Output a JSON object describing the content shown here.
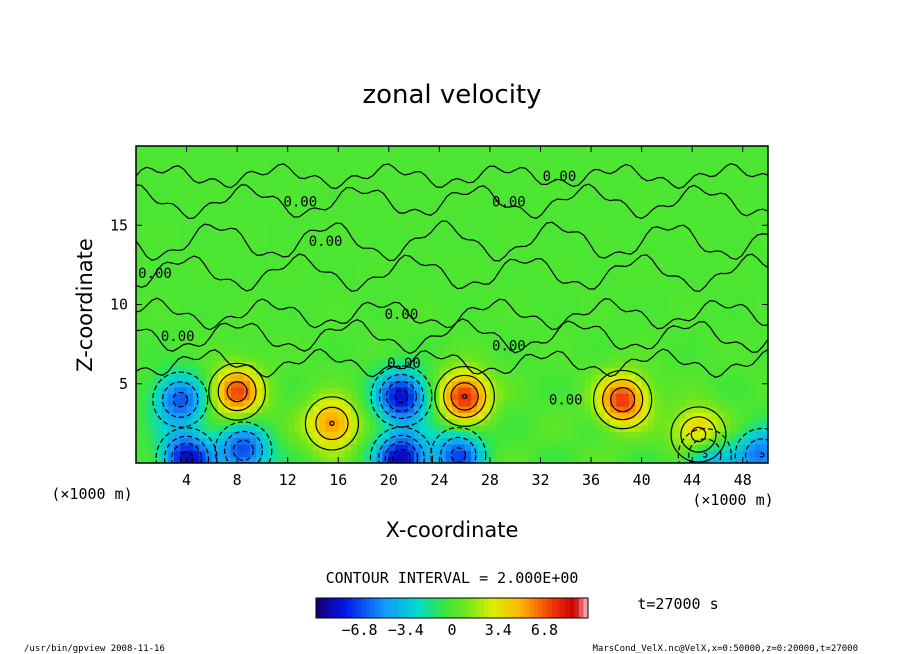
{
  "chart_data": {
    "type": "heatmap",
    "title": "zonal velocity",
    "xlabel": "X-coordinate",
    "ylabel": "Z-coordinate",
    "x_unit_label": "(×1000 m)",
    "y_unit_label": "(×1000 m)",
    "xlim": [
      0,
      50
    ],
    "ylim": [
      0,
      20
    ],
    "x_ticks": [
      "4",
      "8",
      "12",
      "16",
      "20",
      "24",
      "28",
      "32",
      "36",
      "40",
      "44",
      "48"
    ],
    "y_ticks": [
      "5",
      "10",
      "15"
    ],
    "contour_interval_text": "CONTOUR INTERVAL = 2.000E+00",
    "time_text": "t=27000 s",
    "colorbar": {
      "min": -10,
      "max": 10,
      "tick_labels": [
        "−6.8",
        "−3.4",
        "0",
        "3.4",
        "6.8"
      ],
      "tick_values": [
        -6.8,
        -3.4,
        0,
        3.4,
        6.8
      ]
    },
    "contour_labels": [
      {
        "text": "0.00",
        "x": 33.5,
        "z": 18.1
      },
      {
        "text": "0.00",
        "x": 13.0,
        "z": 16.5
      },
      {
        "text": "0.00",
        "x": 29.5,
        "z": 16.5
      },
      {
        "text": "0.00",
        "x": 15.0,
        "z": 14.0
      },
      {
        "text": "0.00",
        "x": 1.5,
        "z": 12.0
      },
      {
        "text": "0.00",
        "x": 21.0,
        "z": 9.4
      },
      {
        "text": "0.00",
        "x": 3.3,
        "z": 8.0
      },
      {
        "text": "0.00",
        "x": 29.5,
        "z": 7.4
      },
      {
        "text": "0.00",
        "x": 21.2,
        "z": 6.3
      },
      {
        "text": "0.00",
        "x": 34.0,
        "z": 4.0
      }
    ],
    "extrema": [
      {
        "x": 3.5,
        "z": 4.0,
        "value": -6.5
      },
      {
        "x": 8.0,
        "z": 4.5,
        "value": 7.0
      },
      {
        "x": 21.0,
        "z": 4.2,
        "value": -8.5
      },
      {
        "x": 26.0,
        "z": 4.2,
        "value": 8.0
      },
      {
        "x": 38.5,
        "z": 4.0,
        "value": 7.5
      },
      {
        "x": 15.5,
        "z": 2.5,
        "value": 6.0
      },
      {
        "x": 44.5,
        "z": 1.8,
        "value": 6.5
      },
      {
        "x": 4.0,
        "z": 0.3,
        "value": -8.5
      },
      {
        "x": 8.5,
        "z": 0.8,
        "value": -7.0
      },
      {
        "x": 21.0,
        "z": 0.3,
        "value": -9.0
      },
      {
        "x": 25.5,
        "z": 0.5,
        "value": -6.5
      },
      {
        "x": 45.0,
        "z": 0.5,
        "value": -6.0
      },
      {
        "x": 49.5,
        "z": 0.5,
        "value": -6.0
      }
    ]
  },
  "footer": {
    "left": "/usr/bin/gpview  2008-11-16",
    "right": "MarsCond_VelX.nc@VelX,x=0:50000,z=0:20000,t=27000"
  }
}
